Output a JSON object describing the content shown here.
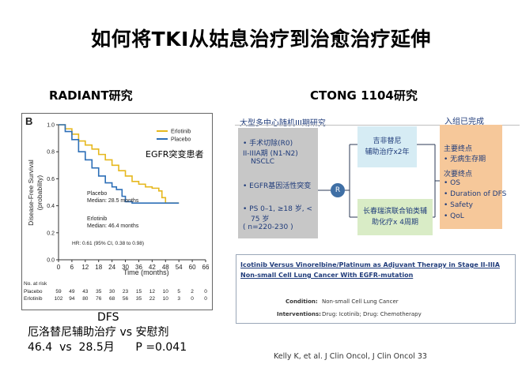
{
  "slide": {
    "title": "如何将TKI从姑息治疗到治愈治疗延伸"
  },
  "left": {
    "heading": "RADIANT研究",
    "panel_letter": "B",
    "annotation": "EGFR突变患者",
    "chart": {
      "ylabel_line1": "Disease-Free Survival",
      "ylabel_line2": "(probability)",
      "xlabel": "Time (months)",
      "yticks": [
        "0.0",
        "0.2",
        "0.4",
        "0.6",
        "0.8",
        "1.0"
      ],
      "xticks": [
        "0",
        "6",
        "12",
        "18",
        "24",
        "30",
        "36",
        "42",
        "48",
        "54",
        "60",
        "66"
      ],
      "legend": [
        {
          "name": "Erlotinib",
          "color": "#e6b81e"
        },
        {
          "name": "Placebo",
          "color": "#2d6fb7"
        }
      ],
      "placebo_label": "Placebo",
      "placebo_median": "Median: 28.5 months",
      "erlotinib_label": "Erlotinib",
      "erlotinib_median": "Median: 46.4 months",
      "hr_text": "HR: 0.61 (95% CI, 0.38 to 0.98)",
      "at_risk_title": "No. at risk",
      "at_risk": [
        {
          "name": "Placebo",
          "values": [
            "59",
            "49",
            "43",
            "35",
            "30",
            "23",
            "15",
            "12",
            "10",
            "5",
            "2",
            "0"
          ]
        },
        {
          "name": "Erlotinib",
          "values": [
            "102",
            "94",
            "80",
            "76",
            "68",
            "56",
            "35",
            "22",
            "10",
            "3",
            "0",
            "0"
          ]
        }
      ]
    },
    "summary": {
      "line1": "DFS",
      "line2": "厄洛替尼辅助治疗 vs 安慰剂",
      "line3": "46.4  vs  28.5月      P =0.041"
    }
  },
  "right": {
    "heading": "CTONG 1104研究",
    "diagram_title": "大型多中心随机III期研究",
    "completed_label": "入组已完成",
    "eligibility": [
      "• 手术切除(R0)",
      "  II-IIIA期 (N1-N2)",
      "  NSCLC",
      "• EGFR基因活性突变",
      "• PS 0–1, ≥18 岁, <",
      "  75 岁",
      "  ( n=220-230 )"
    ],
    "randomize": "R",
    "arm1": [
      "吉非替尼",
      "辅助治疗x2年"
    ],
    "arm2": [
      "长春瑞滨联合铂类辅",
      "助化疗x 4周期"
    ],
    "endpoints": {
      "primary_title": "主要终点",
      "primary": [
        "• 无病生存期"
      ],
      "secondary_title": "次要终点",
      "secondary": [
        "• OS",
        "• Duration of DFS",
        "• Safety",
        "• QoL"
      ]
    },
    "trial_card": {
      "title": "Icotinib Versus Vinorelbine/Platinum as Adjuvant Therapy in Stage II-IIIA Non-small Cell Lung Cancer With EGFR-mutation",
      "condition_label": "Condition:",
      "condition_value": "Non-small Cell Lung Cancer",
      "interventions_label": "Interventions:",
      "interventions_value": "Drug: Icotinib;  Drug: Chemotherapy"
    },
    "reference": "Kelly K, et al. J Clin Oncol, J Clin Oncol 33"
  },
  "chart_data": {
    "type": "line",
    "xlabel": "Time (months)",
    "ylabel": "Disease-Free Survival (probability)",
    "xlim": [
      0,
      66
    ],
    "ylim": [
      0,
      1.0
    ],
    "series": [
      {
        "name": "Erlotinib",
        "color": "#e6b81e",
        "x": [
          0,
          3,
          6,
          9,
          12,
          15,
          18,
          21,
          24,
          27,
          30,
          33,
          36,
          39,
          42,
          45,
          46.4,
          48,
          54
        ],
        "y": [
          1.0,
          0.97,
          0.93,
          0.88,
          0.85,
          0.82,
          0.78,
          0.74,
          0.7,
          0.66,
          0.62,
          0.58,
          0.56,
          0.54,
          0.53,
          0.51,
          0.46,
          0.42,
          0.42
        ]
      },
      {
        "name": "Placebo",
        "color": "#2d6fb7",
        "x": [
          0,
          3,
          6,
          9,
          12,
          15,
          18,
          21,
          24,
          26,
          28.5,
          30,
          33,
          36,
          42,
          48,
          54
        ],
        "y": [
          1.0,
          0.95,
          0.89,
          0.8,
          0.74,
          0.68,
          0.62,
          0.57,
          0.54,
          0.52,
          0.47,
          0.43,
          0.42,
          0.42,
          0.42,
          0.42,
          0.42
        ]
      }
    ]
  }
}
